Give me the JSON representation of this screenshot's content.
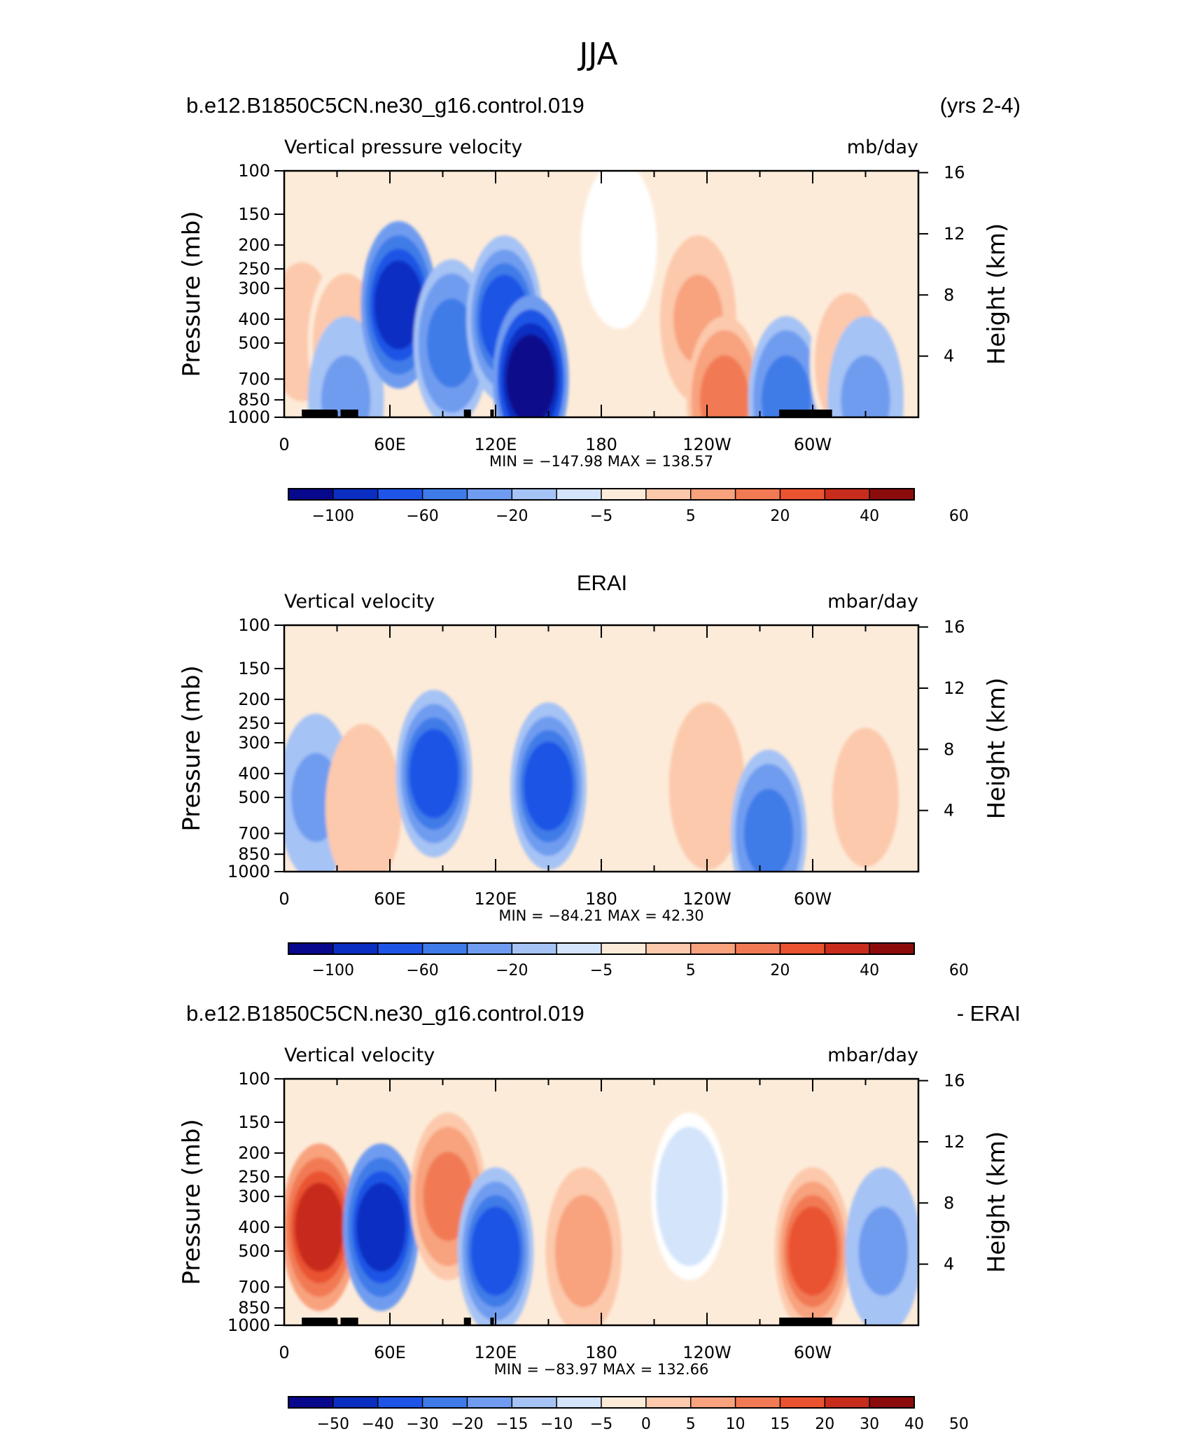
{
  "figure": {
    "title": "JJA"
  },
  "colors": {
    "blues": [
      "#08088c",
      "#0a2ec2",
      "#1f55e6",
      "#3f7be8",
      "#6f9cf0",
      "#a6c3f5",
      "#d3e4fb"
    ],
    "reds": [
      "#fdebd9",
      "#fcc9ac",
      "#f8a27e",
      "#f17a55",
      "#ea5330",
      "#c72c1d",
      "#8c0c0c"
    ],
    "neutral": "#ffffff",
    "land": "#000000"
  },
  "panels": [
    {
      "id": "model",
      "header_left": "b.e12.B1850C5CN.ne30_g16.control.019",
      "header_right": "(yrs 2-4)",
      "header_center": "",
      "subtitle_left": "Vertical pressure velocity",
      "subtitle_right": "mb/day",
      "minmax": "MIN = −147.98   MAX =  138.57",
      "colorbar_labels": [
        "−100",
        "−60",
        "−20",
        "−5",
        "5",
        "20",
        "40",
        "60"
      ],
      "has_land": true
    },
    {
      "id": "obs",
      "header_left": "",
      "header_right": "",
      "header_center": "ERAI",
      "subtitle_left": "Vertical velocity",
      "subtitle_right": "mbar/day",
      "minmax": "MIN = −84.21   MAX =   42.30",
      "colorbar_labels": [
        "−100",
        "−60",
        "−20",
        "−5",
        "5",
        "20",
        "40",
        "60"
      ],
      "has_land": false
    },
    {
      "id": "diff",
      "header_left": "b.e12.B1850C5CN.ne30_g16.control.019",
      "header_right": "- ERAI",
      "header_center": "",
      "subtitle_left": "Vertical velocity",
      "subtitle_right": "mbar/day",
      "minmax": "MIN = −83.97   MAX =  132.66",
      "colorbar_labels": [
        "−50",
        "−40",
        "−30",
        "−20",
        "−15",
        "−10",
        "−5",
        "0",
        "5",
        "10",
        "15",
        "20",
        "30",
        "40",
        "50"
      ],
      "has_land": true
    }
  ],
  "chart_data": [
    {
      "type": "heatmap",
      "panel": "model",
      "title": "b.e12.B1850C5CN.ne30_g16.control.019",
      "units": "mb/day",
      "x_ticks": [
        "0",
        "60E",
        "120E",
        "180",
        "120W",
        "60W"
      ],
      "y_ticks": [
        100,
        150,
        200,
        250,
        300,
        400,
        500,
        700,
        850,
        1000
      ],
      "y_label": "Pressure (mb)",
      "y2_ticks": [
        16,
        12,
        8,
        4
      ],
      "y2_label": "Height (km)",
      "xlim": [
        0,
        360
      ],
      "ylim": [
        1000,
        100
      ],
      "y_scale": "log",
      "min": -147.98,
      "max": 138.57,
      "field": [
        {
          "lon": 10,
          "p": 450,
          "value": 20
        },
        {
          "lon": 35,
          "p": 500,
          "value": 15
        },
        {
          "lon": 35,
          "p": 850,
          "value": -30
        },
        {
          "lon": 65,
          "p": 350,
          "value": -80
        },
        {
          "lon": 95,
          "p": 500,
          "value": -50
        },
        {
          "lon": 125,
          "p": 400,
          "value": -70
        },
        {
          "lon": 140,
          "p": 700,
          "value": -110
        },
        {
          "lon": 190,
          "p": 200,
          "value": 3
        },
        {
          "lon": 235,
          "p": 400,
          "value": 30
        },
        {
          "lon": 250,
          "p": 850,
          "value": 45
        },
        {
          "lon": 285,
          "p": 850,
          "value": -50
        },
        {
          "lon": 320,
          "p": 600,
          "value": 15
        },
        {
          "lon": 330,
          "p": 850,
          "value": -30
        }
      ]
    },
    {
      "type": "heatmap",
      "panel": "obs",
      "title": "ERAI",
      "units": "mbar/day",
      "x_ticks": [
        "0",
        "60E",
        "120E",
        "180",
        "120W",
        "60W"
      ],
      "y_ticks": [
        100,
        150,
        200,
        250,
        300,
        400,
        500,
        700,
        850,
        1000
      ],
      "y_label": "Pressure (mb)",
      "y2_ticks": [
        16,
        12,
        8,
        4
      ],
      "y2_label": "Height (km)",
      "xlim": [
        0,
        360
      ],
      "ylim": [
        1000,
        100
      ],
      "y_scale": "log",
      "min": -84.21,
      "max": 42.3,
      "field": [
        {
          "lon": 18,
          "p": 500,
          "value": -30
        },
        {
          "lon": 45,
          "p": 550,
          "value": 25
        },
        {
          "lon": 85,
          "p": 400,
          "value": -60
        },
        {
          "lon": 150,
          "p": 450,
          "value": -70
        },
        {
          "lon": 240,
          "p": 450,
          "value": 25
        },
        {
          "lon": 275,
          "p": 700,
          "value": -50
        },
        {
          "lon": 330,
          "p": 500,
          "value": 15
        }
      ]
    },
    {
      "type": "heatmap",
      "panel": "diff",
      "title": "b.e12.B1850C5CN.ne30_g16.control.019 - ERAI",
      "units": "mbar/day",
      "x_ticks": [
        "0",
        "60E",
        "120E",
        "180",
        "120W",
        "60W"
      ],
      "y_ticks": [
        100,
        150,
        200,
        250,
        300,
        400,
        500,
        700,
        850,
        1000
      ],
      "y_label": "Pressure (mb)",
      "y2_ticks": [
        16,
        12,
        8,
        4
      ],
      "y2_label": "Height (km)",
      "xlim": [
        0,
        360
      ],
      "ylim": [
        1000,
        100
      ],
      "y_scale": "log",
      "min": -83.97,
      "max": 132.66,
      "field": [
        {
          "lon": 20,
          "p": 400,
          "value": 45
        },
        {
          "lon": 55,
          "p": 400,
          "value": -45
        },
        {
          "lon": 93,
          "p": 300,
          "value": 25
        },
        {
          "lon": 120,
          "p": 500,
          "value": -30
        },
        {
          "lon": 170,
          "p": 500,
          "value": 20
        },
        {
          "lon": 230,
          "p": 300,
          "value": -3
        },
        {
          "lon": 300,
          "p": 500,
          "value": 35
        },
        {
          "lon": 340,
          "p": 500,
          "value": -15
        }
      ]
    }
  ]
}
